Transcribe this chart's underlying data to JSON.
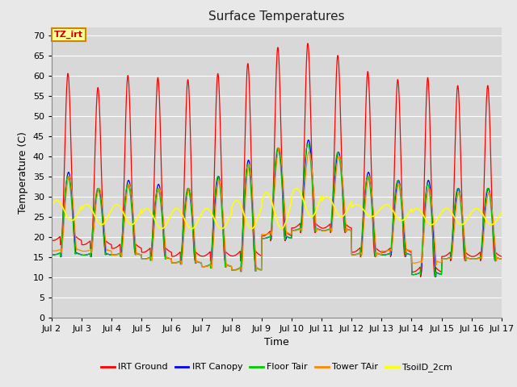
{
  "title": "Surface Temperatures",
  "xlabel": "Time",
  "ylabel": "Temperature (C)",
  "ylim": [
    0,
    72
  ],
  "yticks": [
    0,
    5,
    10,
    15,
    20,
    25,
    30,
    35,
    40,
    45,
    50,
    55,
    60,
    65,
    70
  ],
  "x_labels": [
    "Jul 2",
    "Jul 3",
    "Jul 4",
    "Jul 5",
    "Jul 6",
    "Jul 7",
    "Jul 8",
    "Jul 9",
    "Jul 10",
    "Jul 11",
    "Jul 12",
    "Jul 13",
    "Jul 14",
    "Jul 15",
    "Jul 16",
    "Jul 17"
  ],
  "annotation_text": "TZ_irt",
  "annotation_color": "#cc0000",
  "annotation_bg": "#ffff99",
  "annotation_border": "#cc8800",
  "bg_color": "#e8e8e8",
  "plot_bg_color": "#d8d8d8",
  "grid_color": "#ffffff",
  "series": [
    {
      "label": "IRT Ground",
      "color": "#ff0000"
    },
    {
      "label": "IRT Canopy",
      "color": "#0000ff"
    },
    {
      "label": "Floor Tair",
      "color": "#00cc00"
    },
    {
      "label": "Tower TAir",
      "color": "#ff8800"
    },
    {
      "label": "TsoilD_2cm",
      "color": "#ffff00"
    }
  ],
  "irt_ground_peaks": [
    60.5,
    57,
    60,
    59.5,
    59,
    60.5,
    63,
    67,
    68,
    65,
    61,
    59,
    59.5,
    57.5,
    57.5
  ],
  "irt_ground_mins": [
    18,
    17,
    16,
    15,
    14,
    14,
    14,
    19,
    21,
    21,
    15,
    15,
    10,
    14,
    14
  ],
  "canopy_peaks": [
    36,
    32,
    34,
    33,
    32,
    35,
    39,
    42,
    44,
    41,
    36,
    34,
    34,
    32,
    32
  ],
  "canopy_mins": [
    15,
    15,
    15,
    14,
    13,
    12,
    11,
    19,
    21,
    21,
    15,
    15,
    10,
    14,
    14
  ],
  "floor_peaks": [
    35,
    32,
    33,
    32,
    32,
    35,
    38,
    42,
    43,
    41,
    35,
    34,
    33,
    32,
    32
  ],
  "floor_mins": [
    15,
    15,
    15,
    14,
    13,
    12,
    11,
    19,
    21,
    21,
    15,
    15,
    10,
    14,
    14
  ],
  "tower_peaks": [
    35,
    32,
    33,
    32,
    32,
    34,
    38,
    42,
    41,
    40,
    35,
    33,
    32,
    31,
    31
  ],
  "tower_mins": [
    16,
    16,
    15,
    14,
    13,
    12,
    11,
    20,
    21,
    21,
    15,
    16,
    13,
    14,
    14
  ],
  "soil_mins": [
    24,
    23,
    23,
    22,
    22,
    22,
    22,
    22,
    25,
    25,
    25,
    24,
    23,
    23,
    23
  ],
  "soil_peaks": [
    29,
    28,
    28,
    27,
    27,
    27,
    29,
    31,
    32,
    30,
    28,
    28,
    27,
    27,
    27
  ]
}
